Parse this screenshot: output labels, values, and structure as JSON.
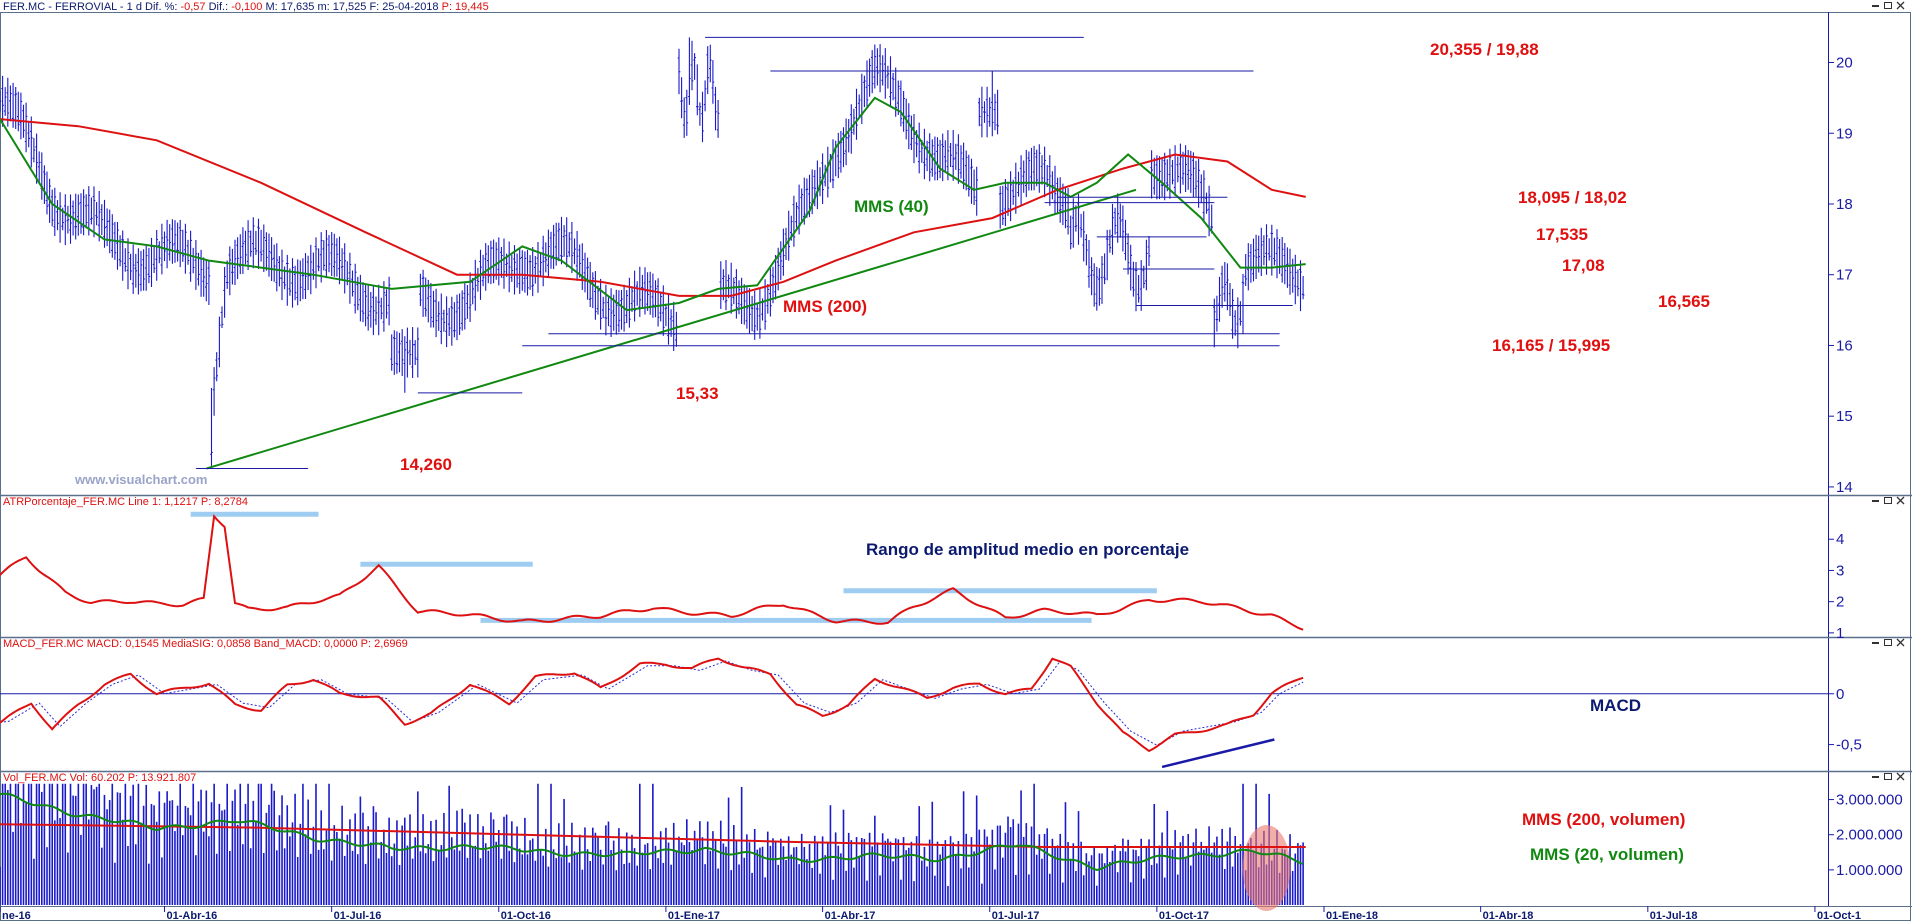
{
  "chart_data": {
    "type": "line",
    "colors": {
      "price": "#1a1acc",
      "mms40": "#118811",
      "mms200": "#dd1111",
      "annot_red": "#e01010",
      "annot_green": "#118811",
      "annot_navy": "#0b1a6e",
      "band": "#9fcdf2",
      "frame": "#5a6f8a"
    },
    "panels": {
      "price": {
        "header": [
          "FER.MC - FERROVIAL - 1 d",
          "Dif. %:",
          "-0,57",
          "Dif.:",
          "-0,100",
          "M: 17,635",
          "m: 17,525",
          "F: 25-04-2018",
          "P: 19,445"
        ],
        "y_ticks": [
          "20",
          "19",
          "18",
          "17",
          "16",
          "15",
          "14"
        ],
        "ylim": [
          13.9,
          20.7
        ],
        "watermark": "www.visualchart.com",
        "series": [
          {
            "name": "MMS (40)",
            "x": [
              0,
              20,
              40,
              60,
              80,
              100,
              120,
              150,
              180,
              200,
              215,
              240,
              260,
              275,
              290,
              310,
              320,
              335,
              345,
              360,
              373,
              385,
              400,
              410,
              420,
              432,
              445,
              460,
              475,
              487,
              500
            ],
            "values": [
              19.2,
              18.0,
              17.5,
              17.4,
              17.2,
              17.1,
              17.0,
              16.8,
              16.9,
              17.4,
              17.2,
              16.5,
              16.6,
              16.8,
              16.85,
              17.9,
              18.8,
              19.5,
              19.3,
              18.5,
              18.2,
              18.3,
              18.3,
              18.1,
              18.3,
              18.7,
              18.3,
              17.8,
              17.1,
              17.1,
              17.15
            ]
          },
          {
            "name": "MMS (200)",
            "x": [
              0,
              30,
              60,
              100,
              140,
              175,
              200,
              230,
              260,
              280,
              300,
              320,
              350,
              380,
              405,
              430,
              450,
              470,
              487,
              500
            ],
            "values": [
              19.2,
              19.1,
              18.9,
              18.3,
              17.6,
              17.0,
              17.0,
              16.9,
              16.7,
              16.7,
              16.9,
              17.2,
              17.6,
              17.8,
              18.2,
              18.5,
              18.7,
              18.6,
              18.2,
              18.1
            ]
          }
        ],
        "trendline": {
          "x": [
            79,
            435
          ],
          "y": [
            14.26,
            18.2
          ]
        },
        "levels": [
          {
            "label": "20,355 / 19,88",
            "y": 19.88,
            "x": [
              295,
              480
            ]
          },
          {
            "label": "",
            "y": 20.355,
            "x": [
              270,
              415
            ]
          },
          {
            "label": "18,095 / 18,02",
            "y": 18.095,
            "x": [
              405,
              470
            ]
          },
          {
            "label": "",
            "y": 18.02,
            "x": [
              400,
              465
            ]
          },
          {
            "label": "17,535",
            "y": 17.535,
            "x": [
              420,
              462
            ]
          },
          {
            "label": "17,08",
            "y": 17.08,
            "x": [
              430,
              465
            ]
          },
          {
            "label": "16,565",
            "y": 16.565,
            "x": [
              435,
              495
            ]
          },
          {
            "label": "16,165 / 15,995",
            "y": 16.165,
            "x": [
              210,
              490
            ]
          },
          {
            "label": "",
            "y": 15.995,
            "x": [
              200,
              490
            ]
          },
          {
            "label": "15,33",
            "y": 15.33,
            "x": [
              160,
              200
            ]
          },
          {
            "label": "14,260",
            "y": 14.26,
            "x": [
              75,
              118
            ]
          }
        ],
        "series_labels": {
          "mms40": "MMS (40)",
          "mms200": "MMS (200)"
        }
      },
      "atr": {
        "header": [
          "ATRPorcentaje_FER.MC",
          "Line 1: 1,1217",
          "P: 8,2784"
        ],
        "title": "Rango de amplitud medio en porcentaje",
        "y_ticks": [
          "4",
          "3",
          "2",
          "1"
        ],
        "ylim": [
          0.9,
          5.0
        ],
        "x": [
          0,
          10,
          15,
          25,
          35,
          50,
          60,
          70,
          78,
          82,
          86,
          90,
          95,
          110,
          130,
          145,
          152,
          160,
          175,
          200,
          230,
          250,
          280,
          300,
          320,
          340,
          350,
          365,
          385,
          400,
          420,
          440,
          460,
          475,
          487,
          500
        ],
        "values": [
          2.8,
          3.4,
          3.0,
          2.3,
          2.0,
          2.0,
          1.9,
          1.9,
          2.1,
          4.8,
          4.5,
          2.0,
          1.8,
          1.8,
          2.2,
          3.2,
          2.5,
          1.7,
          1.6,
          1.4,
          1.5,
          1.8,
          1.5,
          1.9,
          1.4,
          1.3,
          1.8,
          2.4,
          1.5,
          1.7,
          1.6,
          2.1,
          2.0,
          1.8,
          1.6,
          1.15
        ],
        "bands": [
          {
            "x": [
              73,
              122
            ],
            "y": 4.8
          },
          {
            "x": [
              138,
              204
            ],
            "y": 3.2
          },
          {
            "x": [
              184,
              418
            ],
            "y": 1.4
          },
          {
            "x": [
              323,
              443
            ],
            "y": 2.35
          }
        ]
      },
      "macd": {
        "header": [
          "MACD_FER.MC",
          "MACD: 0,1545",
          "MediaSIG: 0,0858",
          "Band_MACD: 0,0000",
          "P: 2,6969"
        ],
        "title": "MACD",
        "y_ticks": [
          "0",
          "-0,5"
        ],
        "ylim": [
          -0.75,
          0.45
        ],
        "x": [
          0,
          12,
          20,
          30,
          40,
          50,
          60,
          70,
          80,
          90,
          100,
          110,
          120,
          130,
          145,
          155,
          165,
          180,
          195,
          205,
          220,
          230,
          245,
          255,
          265,
          275,
          285,
          295,
          305,
          315,
          325,
          335,
          345,
          355,
          365,
          375,
          385,
          395,
          403,
          410,
          420,
          430,
          440,
          450,
          460,
          470,
          480,
          487,
          500
        ],
        "values": [
          -0.3,
          -0.1,
          -0.35,
          -0.1,
          0.1,
          0.2,
          0.0,
          0.05,
          0.1,
          -0.1,
          -0.15,
          0.1,
          0.15,
          0.0,
          -0.05,
          -0.3,
          -0.2,
          0.1,
          -0.1,
          0.15,
          0.2,
          0.05,
          0.3,
          0.3,
          0.25,
          0.35,
          0.25,
          0.2,
          -0.1,
          -0.2,
          -0.1,
          0.15,
          0.05,
          -0.05,
          0.05,
          0.1,
          0.0,
          0.05,
          0.35,
          0.25,
          -0.1,
          -0.4,
          -0.55,
          -0.4,
          -0.35,
          -0.3,
          -0.2,
          0.0,
          0.18
        ],
        "signal_lag": 3,
        "divergence": {
          "x": [
            445,
            488
          ],
          "y": [
            -0.72,
            -0.45
          ]
        }
      },
      "volume": {
        "header": [
          "Vol_FER.MC",
          "Vol: 60.202",
          "P: 13.921.807"
        ],
        "y_ticks": [
          "3.000.000",
          "2.000.000",
          "1.000.000"
        ],
        "ylim": [
          0,
          3500000
        ],
        "mms200_x": [
          0,
          100,
          200,
          300,
          400,
          500
        ],
        "mms200_values": [
          2300000,
          2200000,
          2000000,
          1800000,
          1650000,
          1650000
        ],
        "mms20_x": [
          0,
          30,
          60,
          90,
          120,
          150,
          180,
          210,
          240,
          270,
          300,
          330,
          360,
          390,
          420,
          450,
          480,
          500
        ],
        "mms20_values": [
          3100000,
          2600000,
          2200000,
          2400000,
          1900000,
          1600000,
          1700000,
          1500000,
          1400000,
          1600000,
          1300000,
          1400000,
          1300000,
          1700000,
          1100000,
          1400000,
          1500000,
          1200000
        ],
        "labels": {
          "mms200": "MMS (200, volumen)",
          "mms20": "MMS (20, volumen)"
        }
      }
    },
    "x_axis": {
      "ticks": [
        {
          "x": 0,
          "label": "ne-16"
        },
        {
          "x": 63,
          "label": "01-Abr-16"
        },
        {
          "x": 127,
          "label": "01-Jul-16"
        },
        {
          "x": 191,
          "label": "01-Oct-16"
        },
        {
          "x": 255,
          "label": "01-Ene-17"
        },
        {
          "x": 315,
          "label": "01-Abr-17"
        },
        {
          "x": 379,
          "label": "01-Jul-17"
        },
        {
          "x": 443,
          "label": "01-Oct-17"
        },
        {
          "x": 507,
          "label": "01-Ene-18"
        },
        {
          "x": 567,
          "label": "01-Abr-18"
        },
        {
          "x": 631,
          "label": "01-Jul-18"
        },
        {
          "x": 695,
          "label": "01-Oct-1"
        }
      ]
    }
  }
}
